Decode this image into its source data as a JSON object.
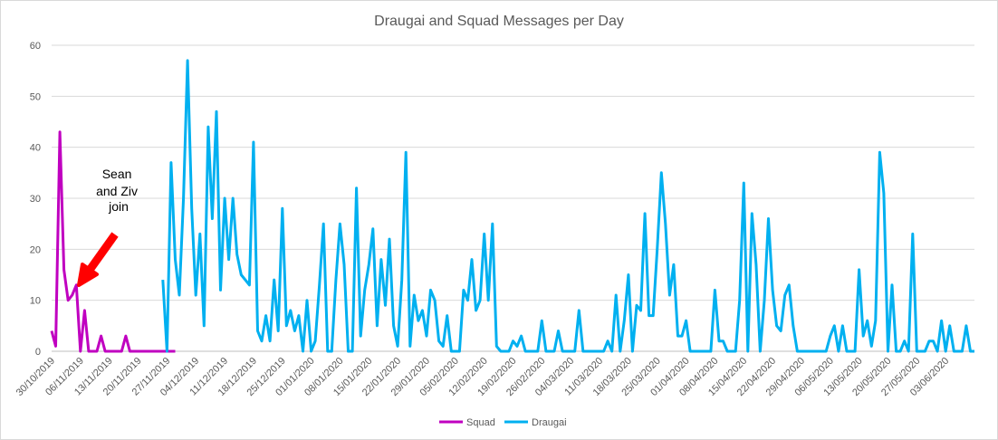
{
  "chart_data": {
    "type": "line",
    "title": "Draugai and Squad Messages per Day",
    "xlabel": "",
    "ylabel": "",
    "ylim": [
      0,
      60
    ],
    "y_ticks": [
      0,
      10,
      20,
      30,
      40,
      50,
      60
    ],
    "x_start": "30/10/2019",
    "x_end": "10/06/2020",
    "x_ticks": [
      "30/10/2019",
      "06/11/2019",
      "13/11/2019",
      "20/11/2019",
      "27/11/2019",
      "04/12/2019",
      "11/12/2019",
      "18/12/2019",
      "25/12/2019",
      "01/01/2020",
      "08/01/2020",
      "15/01/2020",
      "22/01/2020",
      "29/01/2020",
      "05/02/2020",
      "12/02/2020",
      "19/02/2020",
      "26/02/2020",
      "04/03/2020",
      "11/03/2020",
      "18/03/2020",
      "25/03/2020",
      "01/04/2020",
      "08/04/2020",
      "15/04/2020",
      "22/04/2020",
      "29/04/2020",
      "06/05/2020",
      "13/05/2020",
      "20/05/2020",
      "27/05/2020",
      "03/06/2020"
    ],
    "grid": true,
    "legend_position": "bottom",
    "series": [
      {
        "name": "Squad",
        "color": "#c000c0",
        "points": [
          [
            "30/10/2019",
            4
          ],
          [
            "31/10/2019",
            1
          ],
          [
            "01/11/2019",
            43
          ],
          [
            "02/11/2019",
            16
          ],
          [
            "03/11/2019",
            10
          ],
          [
            "04/11/2019",
            11
          ],
          [
            "05/11/2019",
            13
          ],
          [
            "06/11/2019",
            0
          ],
          [
            "07/11/2019",
            8
          ],
          [
            "08/11/2019",
            0
          ],
          [
            "09/11/2019",
            0
          ],
          [
            "10/11/2019",
            0
          ],
          [
            "11/11/2019",
            3
          ],
          [
            "12/11/2019",
            0
          ],
          [
            "13/11/2019",
            0
          ],
          [
            "14/11/2019",
            0
          ],
          [
            "15/11/2019",
            0
          ],
          [
            "16/11/2019",
            0
          ],
          [
            "17/11/2019",
            3
          ],
          [
            "18/11/2019",
            0
          ],
          [
            "19/11/2019",
            0
          ],
          [
            "20/11/2019",
            0
          ],
          [
            "21/11/2019",
            0
          ],
          [
            "22/11/2019",
            0
          ],
          [
            "23/11/2019",
            0
          ],
          [
            "24/11/2019",
            0
          ],
          [
            "25/11/2019",
            0
          ],
          [
            "26/11/2019",
            0
          ],
          [
            "27/11/2019",
            0
          ],
          [
            "28/11/2019",
            0
          ],
          [
            "29/11/2019",
            0
          ]
        ]
      },
      {
        "name": "Draugai",
        "color": "#00b0f0",
        "points": [
          [
            "26/11/2019",
            14
          ],
          [
            "27/11/2019",
            0
          ],
          [
            "28/11/2019",
            37
          ],
          [
            "29/11/2019",
            18
          ],
          [
            "30/11/2019",
            11
          ],
          [
            "01/12/2019",
            30
          ],
          [
            "02/12/2019",
            57
          ],
          [
            "03/12/2019",
            28
          ],
          [
            "04/12/2019",
            11
          ],
          [
            "05/12/2019",
            23
          ],
          [
            "06/12/2019",
            5
          ],
          [
            "07/12/2019",
            44
          ],
          [
            "08/12/2019",
            26
          ],
          [
            "09/12/2019",
            47
          ],
          [
            "10/12/2019",
            12
          ],
          [
            "11/12/2019",
            30
          ],
          [
            "12/12/2019",
            18
          ],
          [
            "13/12/2019",
            30
          ],
          [
            "14/12/2019",
            19
          ],
          [
            "15/12/2019",
            15
          ],
          [
            "16/12/2019",
            14
          ],
          [
            "17/12/2019",
            13
          ],
          [
            "18/12/2019",
            41
          ],
          [
            "19/12/2019",
            4
          ],
          [
            "20/12/2019",
            2
          ],
          [
            "21/12/2019",
            7
          ],
          [
            "22/12/2019",
            2
          ],
          [
            "23/12/2019",
            14
          ],
          [
            "24/12/2019",
            4
          ],
          [
            "25/12/2019",
            28
          ],
          [
            "26/12/2019",
            5
          ],
          [
            "27/12/2019",
            8
          ],
          [
            "28/12/2019",
            4
          ],
          [
            "29/12/2019",
            7
          ],
          [
            "30/12/2019",
            0
          ],
          [
            "31/12/2019",
            10
          ],
          [
            "01/01/2020",
            0
          ],
          [
            "02/01/2020",
            2
          ],
          [
            "03/01/2020",
            13
          ],
          [
            "04/01/2020",
            25
          ],
          [
            "05/01/2020",
            0
          ],
          [
            "06/01/2020",
            0
          ],
          [
            "07/01/2020",
            14
          ],
          [
            "08/01/2020",
            25
          ],
          [
            "09/01/2020",
            17
          ],
          [
            "10/01/2020",
            0
          ],
          [
            "11/01/2020",
            0
          ],
          [
            "12/01/2020",
            32
          ],
          [
            "13/01/2020",
            3
          ],
          [
            "14/01/2020",
            12
          ],
          [
            "15/01/2020",
            17
          ],
          [
            "16/01/2020",
            24
          ],
          [
            "17/01/2020",
            5
          ],
          [
            "18/01/2020",
            18
          ],
          [
            "19/01/2020",
            9
          ],
          [
            "20/01/2020",
            22
          ],
          [
            "21/01/2020",
            5
          ],
          [
            "22/01/2020",
            1
          ],
          [
            "23/01/2020",
            14
          ],
          [
            "24/01/2020",
            39
          ],
          [
            "25/01/2020",
            1
          ],
          [
            "26/01/2020",
            11
          ],
          [
            "27/01/2020",
            6
          ],
          [
            "28/01/2020",
            8
          ],
          [
            "29/01/2020",
            3
          ],
          [
            "30/01/2020",
            12
          ],
          [
            "31/01/2020",
            10
          ],
          [
            "01/02/2020",
            2
          ],
          [
            "02/02/2020",
            1
          ],
          [
            "03/02/2020",
            7
          ],
          [
            "04/02/2020",
            0
          ],
          [
            "05/02/2020",
            0
          ],
          [
            "06/02/2020",
            0
          ],
          [
            "07/02/2020",
            12
          ],
          [
            "08/02/2020",
            10
          ],
          [
            "09/02/2020",
            18
          ],
          [
            "10/02/2020",
            8
          ],
          [
            "11/02/2020",
            10
          ],
          [
            "12/02/2020",
            23
          ],
          [
            "13/02/2020",
            10
          ],
          [
            "14/02/2020",
            25
          ],
          [
            "15/02/2020",
            1
          ],
          [
            "16/02/2020",
            0
          ],
          [
            "17/02/2020",
            0
          ],
          [
            "18/02/2020",
            0
          ],
          [
            "19/02/2020",
            2
          ],
          [
            "20/02/2020",
            1
          ],
          [
            "21/02/2020",
            3
          ],
          [
            "22/02/2020",
            0
          ],
          [
            "23/02/2020",
            0
          ],
          [
            "24/02/2020",
            0
          ],
          [
            "25/02/2020",
            0
          ],
          [
            "26/02/2020",
            6
          ],
          [
            "27/02/2020",
            0
          ],
          [
            "28/02/2020",
            0
          ],
          [
            "29/02/2020",
            0
          ],
          [
            "01/03/2020",
            4
          ],
          [
            "02/03/2020",
            0
          ],
          [
            "03/03/2020",
            0
          ],
          [
            "04/03/2020",
            0
          ],
          [
            "05/03/2020",
            0
          ],
          [
            "06/03/2020",
            8
          ],
          [
            "07/03/2020",
            0
          ],
          [
            "08/03/2020",
            0
          ],
          [
            "09/03/2020",
            0
          ],
          [
            "10/03/2020",
            0
          ],
          [
            "11/03/2020",
            0
          ],
          [
            "12/03/2020",
            0
          ],
          [
            "13/03/2020",
            2
          ],
          [
            "14/03/2020",
            0
          ],
          [
            "15/03/2020",
            11
          ],
          [
            "16/03/2020",
            0
          ],
          [
            "17/03/2020",
            6
          ],
          [
            "18/03/2020",
            15
          ],
          [
            "19/03/2020",
            0
          ],
          [
            "20/03/2020",
            9
          ],
          [
            "21/03/2020",
            8
          ],
          [
            "22/03/2020",
            27
          ],
          [
            "23/03/2020",
            7
          ],
          [
            "24/03/2020",
            7
          ],
          [
            "25/03/2020",
            20
          ],
          [
            "26/03/2020",
            35
          ],
          [
            "27/03/2020",
            25
          ],
          [
            "28/03/2020",
            11
          ],
          [
            "29/03/2020",
            17
          ],
          [
            "30/03/2020",
            3
          ],
          [
            "31/03/2020",
            3
          ],
          [
            "01/04/2020",
            6
          ],
          [
            "02/04/2020",
            0
          ],
          [
            "03/04/2020",
            0
          ],
          [
            "04/04/2020",
            0
          ],
          [
            "05/04/2020",
            0
          ],
          [
            "06/04/2020",
            0
          ],
          [
            "07/04/2020",
            0
          ],
          [
            "08/04/2020",
            12
          ],
          [
            "09/04/2020",
            2
          ],
          [
            "10/04/2020",
            2
          ],
          [
            "11/04/2020",
            0
          ],
          [
            "12/04/2020",
            0
          ],
          [
            "13/04/2020",
            0
          ],
          [
            "14/04/2020",
            10
          ],
          [
            "15/04/2020",
            33
          ],
          [
            "16/04/2020",
            0
          ],
          [
            "17/04/2020",
            27
          ],
          [
            "18/04/2020",
            17
          ],
          [
            "19/04/2020",
            0
          ],
          [
            "20/04/2020",
            10
          ],
          [
            "21/04/2020",
            26
          ],
          [
            "22/04/2020",
            12
          ],
          [
            "23/04/2020",
            5
          ],
          [
            "24/04/2020",
            4
          ],
          [
            "25/04/2020",
            11
          ],
          [
            "26/04/2020",
            13
          ],
          [
            "27/04/2020",
            5
          ],
          [
            "28/04/2020",
            0
          ],
          [
            "29/04/2020",
            0
          ],
          [
            "30/04/2020",
            0
          ],
          [
            "01/05/2020",
            0
          ],
          [
            "02/05/2020",
            0
          ],
          [
            "03/05/2020",
            0
          ],
          [
            "04/05/2020",
            0
          ],
          [
            "05/05/2020",
            0
          ],
          [
            "06/05/2020",
            3
          ],
          [
            "07/05/2020",
            5
          ],
          [
            "08/05/2020",
            0
          ],
          [
            "09/05/2020",
            5
          ],
          [
            "10/05/2020",
            0
          ],
          [
            "11/05/2020",
            0
          ],
          [
            "12/05/2020",
            0
          ],
          [
            "13/05/2020",
            16
          ],
          [
            "14/05/2020",
            3
          ],
          [
            "15/05/2020",
            6
          ],
          [
            "16/05/2020",
            1
          ],
          [
            "17/05/2020",
            6
          ],
          [
            "18/05/2020",
            39
          ],
          [
            "19/05/2020",
            31
          ],
          [
            "20/05/2020",
            0
          ],
          [
            "21/05/2020",
            13
          ],
          [
            "22/05/2020",
            0
          ],
          [
            "23/05/2020",
            0
          ],
          [
            "24/05/2020",
            2
          ],
          [
            "25/05/2020",
            0
          ],
          [
            "26/05/2020",
            23
          ],
          [
            "27/05/2020",
            0
          ],
          [
            "28/05/2020",
            0
          ],
          [
            "29/05/2020",
            0
          ],
          [
            "30/05/2020",
            2
          ],
          [
            "31/05/2020",
            2
          ],
          [
            "01/06/2020",
            0
          ],
          [
            "02/06/2020",
            6
          ],
          [
            "03/06/2020",
            0
          ],
          [
            "04/06/2020",
            5
          ],
          [
            "05/06/2020",
            0
          ],
          [
            "06/06/2020",
            0
          ],
          [
            "07/06/2020",
            0
          ],
          [
            "08/06/2020",
            5
          ],
          [
            "09/06/2020",
            0
          ],
          [
            "10/06/2020",
            0
          ]
        ]
      }
    ],
    "annotations": [
      {
        "lines": [
          "Sean",
          "and Ziv",
          "join"
        ],
        "points_to": [
          "05/11/2019",
          13
        ]
      }
    ]
  }
}
